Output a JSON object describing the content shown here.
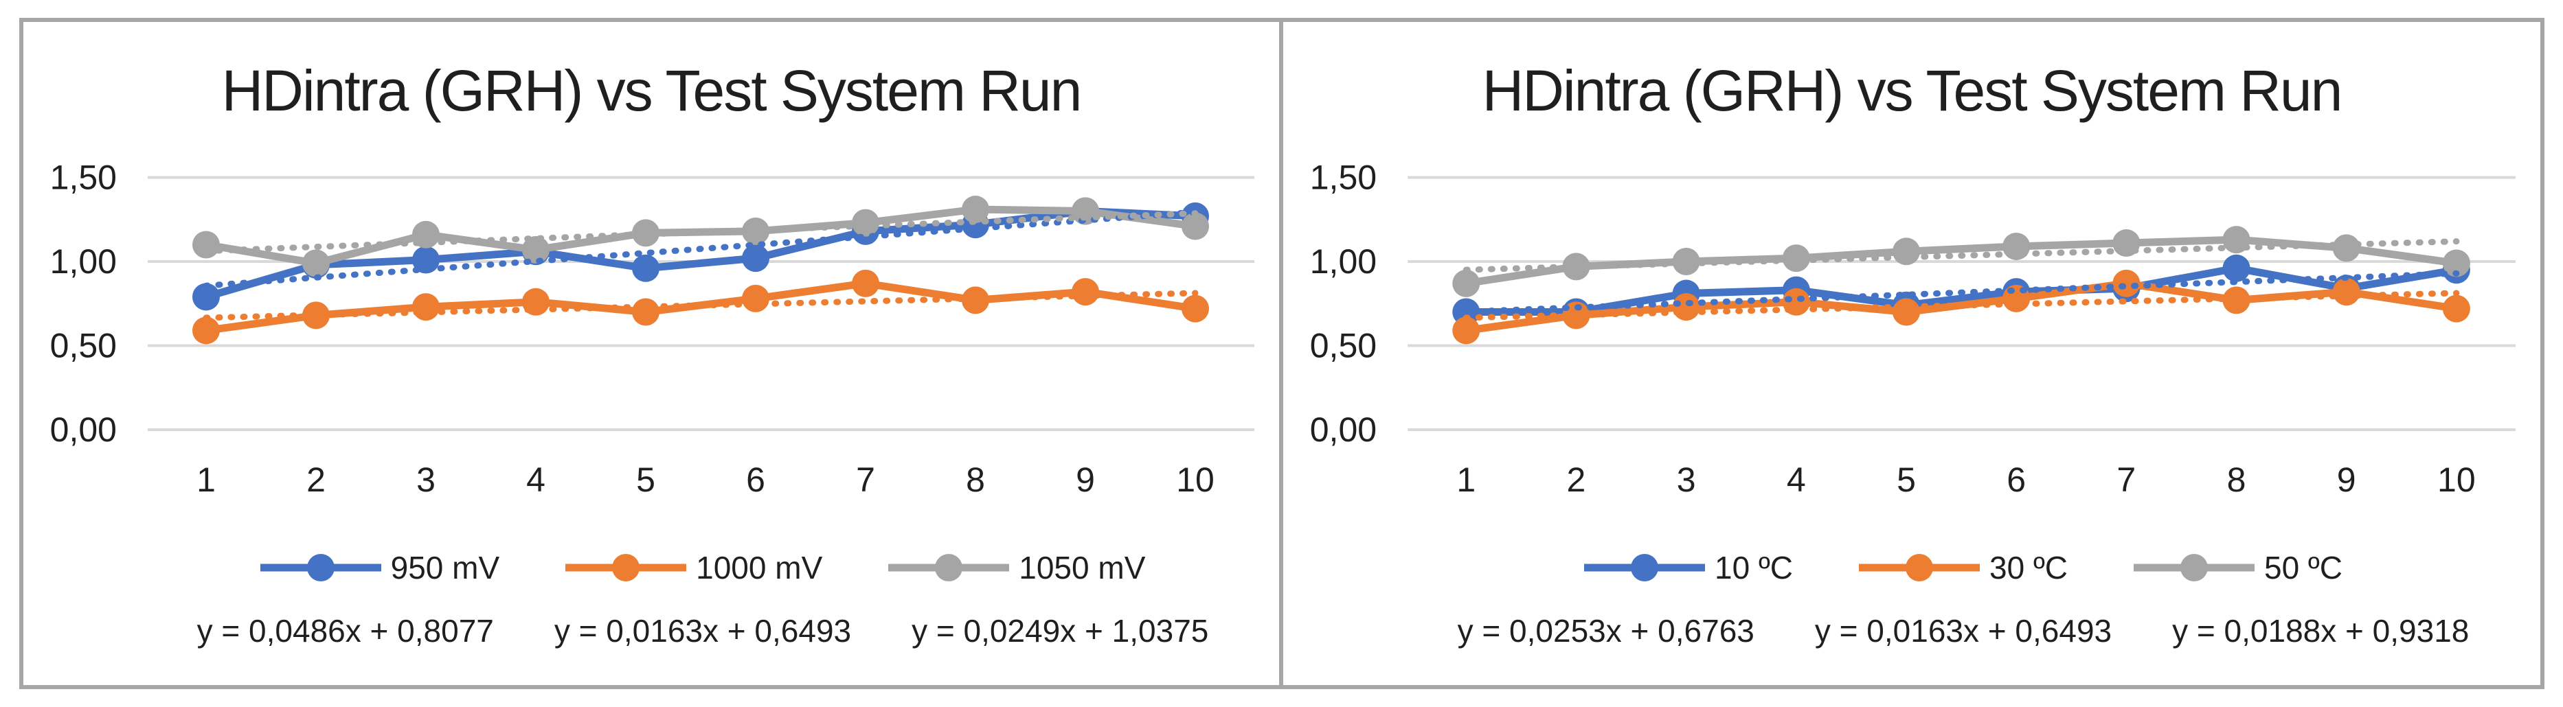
{
  "frame": {
    "border_color": "#a6a6a6",
    "background": "#ffffff"
  },
  "styles": {
    "text_color": "#1f1f1f",
    "gridline_color": "#d9d9d9",
    "series_colors": {
      "blue": "#4472C4",
      "orange": "#ED7D31",
      "gray": "#A5A5A5"
    }
  },
  "chart_data": [
    {
      "type": "line",
      "title": "HDintra (GRH) vs Test System Run",
      "xlabel": "",
      "ylabel": "",
      "grid": true,
      "legend_position": "bottom",
      "ylim": [
        0,
        1.5
      ],
      "x": [
        1,
        2,
        3,
        4,
        5,
        6,
        7,
        8,
        9,
        10
      ],
      "x_tick_labels": [
        "1",
        "2",
        "3",
        "4",
        "5",
        "6",
        "7",
        "8",
        "9",
        "10"
      ],
      "y_ticks": [
        {
          "label": "0,00",
          "value": 0.0
        },
        {
          "label": "0,50",
          "value": 0.5
        },
        {
          "label": "1,00",
          "value": 1.0
        },
        {
          "label": "1,50",
          "value": 1.5
        }
      ],
      "series": [
        {
          "name": "950 mV",
          "color": "#4472C4",
          "values": [
            0.79,
            0.98,
            1.01,
            1.06,
            0.96,
            1.02,
            1.18,
            1.22,
            1.3,
            1.27
          ],
          "trendline": {
            "style": "dotted",
            "slope": 0.0486,
            "intercept": 0.8077,
            "equation": "y = 0,0486x + 0,8077"
          }
        },
        {
          "name": "1000 mV",
          "color": "#ED7D31",
          "values": [
            0.59,
            0.68,
            0.73,
            0.76,
            0.7,
            0.78,
            0.87,
            0.77,
            0.82,
            0.72
          ],
          "trendline": {
            "style": "dotted",
            "slope": 0.0163,
            "intercept": 0.6493,
            "equation": "y = 0,0163x + 0,6493"
          }
        },
        {
          "name": "1050 mV",
          "color": "#A5A5A5",
          "values": [
            1.1,
            0.99,
            1.16,
            1.07,
            1.17,
            1.18,
            1.23,
            1.31,
            1.3,
            1.21
          ],
          "trendline": {
            "style": "dotted",
            "slope": 0.0249,
            "intercept": 1.0375,
            "equation": "y = 0,0249x + 1,0375"
          }
        }
      ]
    },
    {
      "type": "line",
      "title": "HDintra (GRH) vs Test System Run",
      "xlabel": "",
      "ylabel": "",
      "grid": true,
      "legend_position": "bottom",
      "ylim": [
        0,
        1.5
      ],
      "x": [
        1,
        2,
        3,
        4,
        5,
        6,
        7,
        8,
        9,
        10
      ],
      "x_tick_labels": [
        "1",
        "2",
        "3",
        "4",
        "5",
        "6",
        "7",
        "8",
        "9",
        "10"
      ],
      "y_ticks": [
        {
          "label": "0,00",
          "value": 0.0
        },
        {
          "label": "0,50",
          "value": 0.5
        },
        {
          "label": "1,00",
          "value": 1.0
        },
        {
          "label": "1,50",
          "value": 1.5
        }
      ],
      "series": [
        {
          "name": "10 ºC",
          "color": "#4472C4",
          "values": [
            0.7,
            0.7,
            0.81,
            0.83,
            0.74,
            0.82,
            0.84,
            0.96,
            0.84,
            0.95
          ],
          "trendline": {
            "style": "dotted",
            "slope": 0.0253,
            "intercept": 0.6763,
            "equation": "y = 0,0253x + 0,6763"
          }
        },
        {
          "name": "30 ºC",
          "color": "#ED7D31",
          "values": [
            0.59,
            0.68,
            0.73,
            0.76,
            0.7,
            0.78,
            0.87,
            0.77,
            0.82,
            0.72
          ],
          "trendline": {
            "style": "dotted",
            "slope": 0.0163,
            "intercept": 0.6493,
            "equation": "y = 0,0163x + 0,6493"
          }
        },
        {
          "name": "50 ºC",
          "color": "#A5A5A5",
          "values": [
            0.87,
            0.97,
            1.0,
            1.02,
            1.06,
            1.09,
            1.11,
            1.13,
            1.08,
            0.99
          ],
          "trendline": {
            "style": "dotted",
            "slope": 0.0188,
            "intercept": 0.9318,
            "equation": "y = 0,0188x + 0,9318"
          }
        }
      ]
    }
  ]
}
